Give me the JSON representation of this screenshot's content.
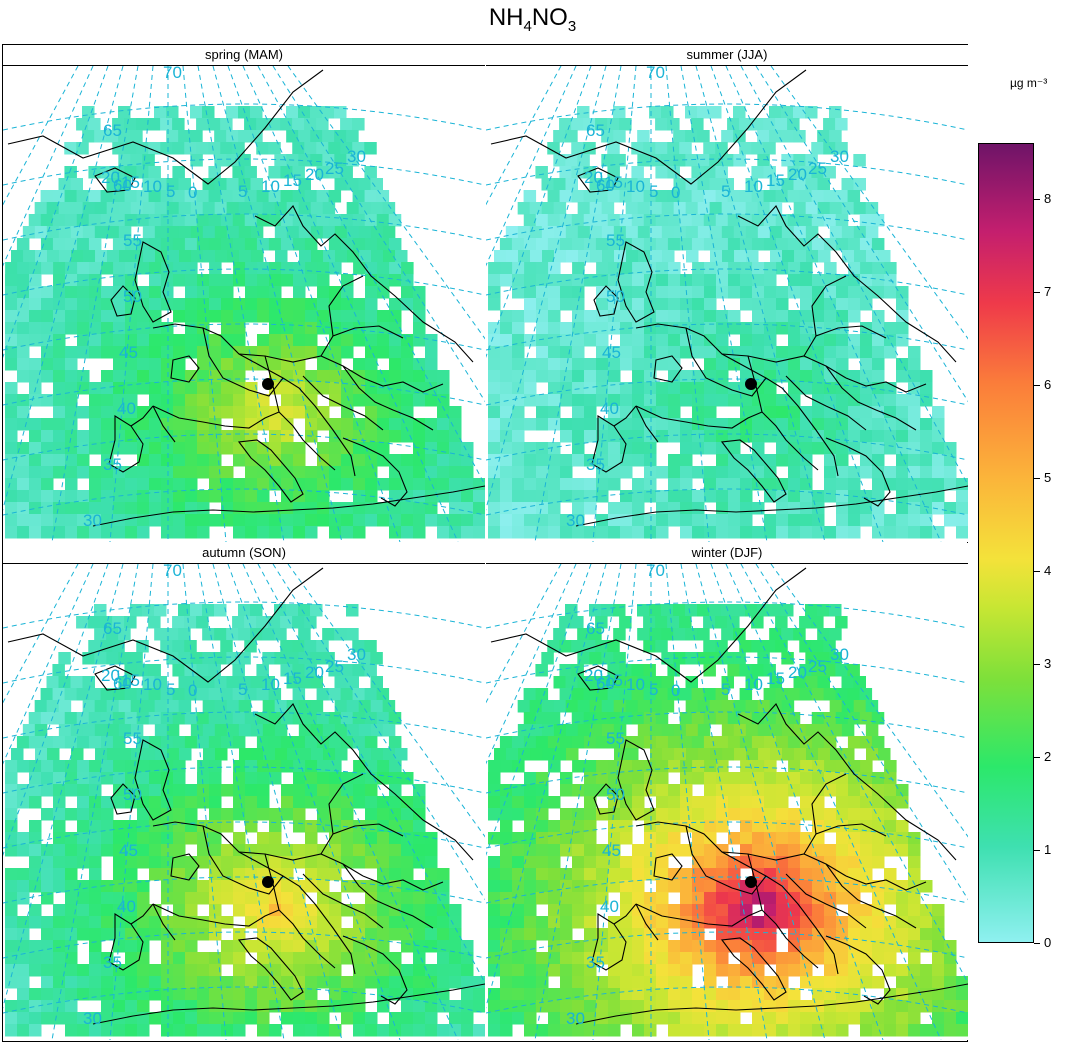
{
  "figure": {
    "title_main": "NH",
    "title_sub1": "4",
    "title_mid": "NO",
    "title_sub2": "3"
  },
  "colorbar": {
    "unit": "µg m⁻³",
    "min": 0,
    "max": 8.6,
    "ticks": [
      "0",
      "1",
      "2",
      "3",
      "4",
      "5",
      "6",
      "7",
      "8"
    ],
    "colors": [
      "#8ff0f0",
      "#3ee0b0",
      "#2ce86a",
      "#7ee03a",
      "#c8e633",
      "#f4e23a",
      "#fbb53a",
      "#fb7d3a",
      "#ef3a4a",
      "#c41f6e",
      "#6f1468"
    ]
  },
  "graticule": {
    "color": "#1ab4d6",
    "lat_labels": [
      "70",
      "65",
      "60",
      "55",
      "50",
      "45",
      "40",
      "35",
      "30"
    ],
    "lon_labels": [
      "20",
      "15",
      "10",
      "5",
      "0",
      "5",
      "10",
      "15",
      "20",
      "25",
      "30"
    ]
  },
  "panels": [
    {
      "label": "spring (MAM)",
      "level": 2.4
    },
    {
      "label": "summer (JJA)",
      "level": 0.9
    },
    {
      "label": "autumn (SON)",
      "level": 3.0
    },
    {
      "label": "winter (DJF)",
      "level": 5.2
    }
  ],
  "marker": {
    "name": "station",
    "color": "#000000"
  }
}
